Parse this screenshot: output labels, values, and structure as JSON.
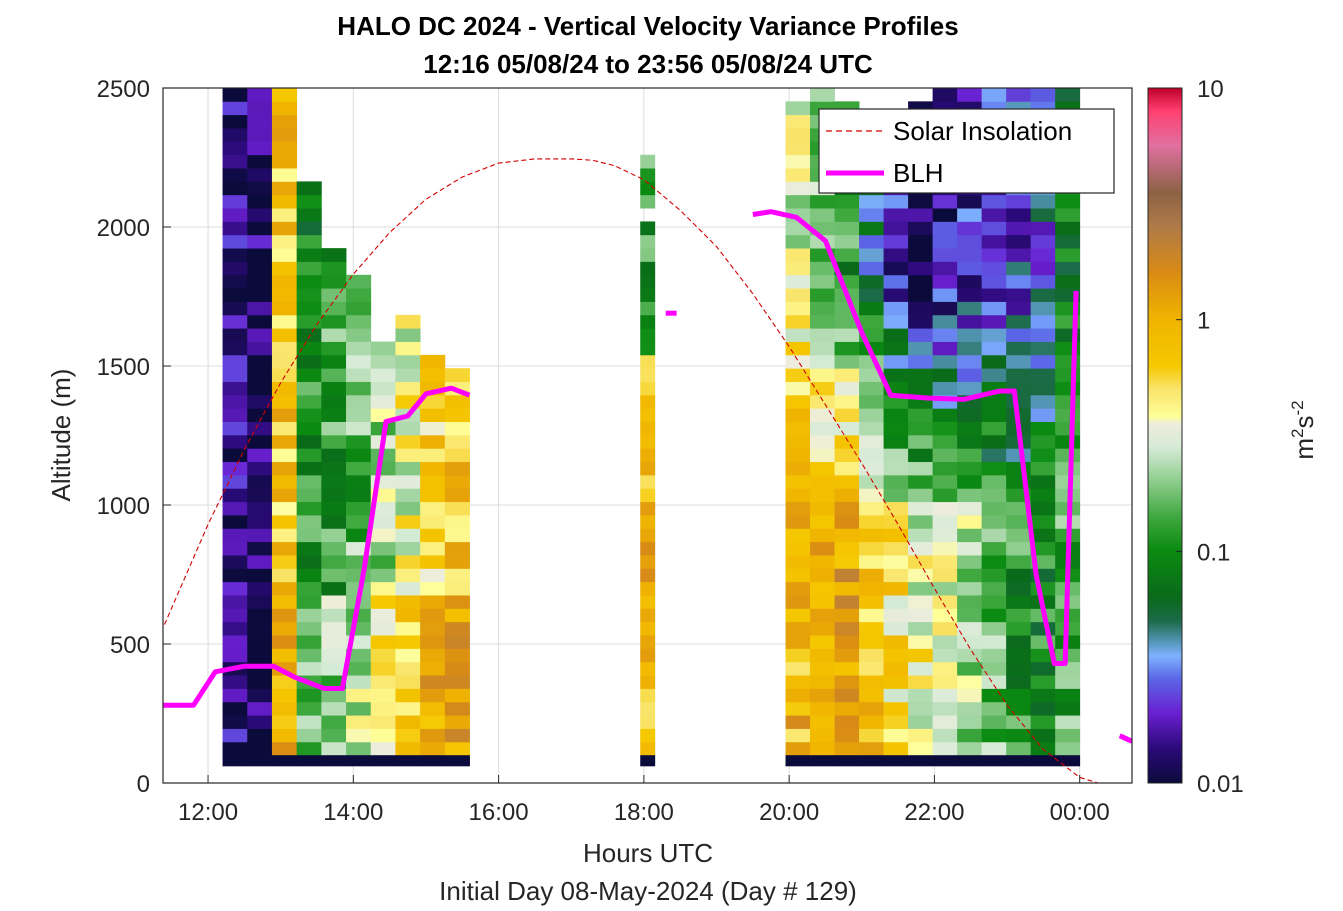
{
  "chart_data": {
    "type": "heatmap",
    "title": "HALO DC 2024 - Vertical Velocity Variance Profiles",
    "subtitle": "12:16 05/08/24 to 23:56 05/08/24  UTC",
    "xlabel": "Hours UTC",
    "ylabel": "Altitude (m)",
    "footer": "Initial Day 08-May-2024 (Day # 129)",
    "colorbar_label_base": "m",
    "colorbar_label_sup1": "2",
    "colorbar_label_mid": "s",
    "colorbar_label_sup2": "-2",
    "xlim": [
      11.38,
      24.72
    ],
    "ylim": [
      0,
      2500
    ],
    "x_ticks": [
      {
        "value": 12,
        "label": "12:00"
      },
      {
        "value": 14,
        "label": "14:00"
      },
      {
        "value": 16,
        "label": "16:00"
      },
      {
        "value": 18,
        "label": "18:00"
      },
      {
        "value": 20,
        "label": "20:00"
      },
      {
        "value": 22,
        "label": "22:00"
      },
      {
        "value": 24,
        "label": "00:00"
      }
    ],
    "y_ticks": [
      {
        "value": 0,
        "label": "0"
      },
      {
        "value": 500,
        "label": "500"
      },
      {
        "value": 1000,
        "label": "1000"
      },
      {
        "value": 1500,
        "label": "1500"
      },
      {
        "value": 2000,
        "label": "2000"
      },
      {
        "value": 2500,
        "label": "2500"
      }
    ],
    "colorbar_ticks": [
      {
        "value": 10,
        "label": "10"
      },
      {
        "value": 1,
        "label": "1"
      },
      {
        "value": 0.1,
        "label": "0.1"
      },
      {
        "value": 0.01,
        "label": "0.01"
      }
    ],
    "color_range": [
      0.01,
      10
    ],
    "grid": true,
    "legend_placement": "top-right",
    "series": [
      {
        "name": "Solar Insolation",
        "style": "dashed",
        "color": "#d40000",
        "x": [
          11.4,
          12.0,
          12.5,
          13.0,
          13.5,
          14.0,
          14.5,
          15.0,
          15.5,
          16.0,
          16.5,
          17.0,
          17.3,
          17.6,
          18.0,
          18.5,
          19.0,
          19.5,
          20.0,
          20.5,
          21.0,
          21.5,
          22.0,
          22.5,
          23.0,
          23.5,
          24.0,
          24.25,
          24.7
        ],
        "y": [
          570,
          930,
          1200,
          1440,
          1650,
          1830,
          1980,
          2100,
          2180,
          2230,
          2245,
          2245,
          2240,
          2220,
          2170,
          2060,
          1930,
          1760,
          1570,
          1360,
          1150,
          930,
          700,
          480,
          280,
          120,
          20,
          0,
          0
        ]
      },
      {
        "name": "BLH",
        "style": "solid",
        "color": "#ff00ff",
        "x": [
          11.38,
          11.8,
          12.1,
          12.5,
          12.9,
          13.2,
          13.6,
          13.85,
          14.15,
          14.45,
          14.75,
          15.0,
          15.35,
          15.6
        ],
        "y": [
          280,
          280,
          400,
          420,
          420,
          380,
          340,
          340,
          770,
          1300,
          1320,
          1400,
          1420,
          1395
        ]
      },
      {
        "name": "BLH",
        "style": "solid",
        "color": "#ff00ff",
        "x": [
          18.3,
          18.45
        ],
        "y": [
          1690,
          1690
        ]
      },
      {
        "name": "BLH",
        "style": "solid",
        "color": "#ff00ff",
        "x": [
          19.5,
          19.75,
          20.1,
          20.5,
          21.0,
          21.4,
          21.9,
          22.4,
          22.9,
          23.1,
          23.4,
          23.65,
          23.8,
          23.95
        ],
        "y": [
          2045,
          2055,
          2035,
          1950,
          1620,
          1395,
          1385,
          1380,
          1410,
          1410,
          750,
          430,
          430,
          1770
        ]
      },
      {
        "name": "BLH",
        "style": "solid",
        "color": "#ff00ff",
        "x": [
          24.55,
          24.72
        ],
        "y": [
          170,
          150
        ]
      }
    ],
    "blocks": [
      {
        "x_start": 12.2,
        "x_end": 15.6,
        "columns": 10
      },
      {
        "x_start": 17.95,
        "x_end": 18.15,
        "columns": 1
      },
      {
        "x_start": 19.95,
        "x_end": 24.0,
        "columns": 12
      }
    ]
  },
  "legend": {
    "items": [
      {
        "label": "Solar Insolation"
      },
      {
        "label": "BLH"
      }
    ]
  }
}
